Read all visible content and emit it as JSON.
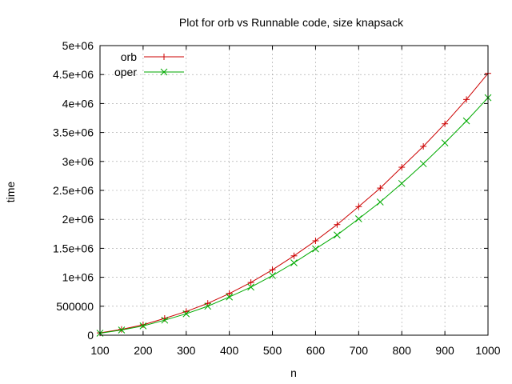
{
  "chart_data": {
    "type": "line",
    "title": "Plot for orb vs Runnable code, size knapsack",
    "xlabel": "n",
    "ylabel": "time",
    "xlim": [
      100,
      1000
    ],
    "ylim": [
      0,
      5000000
    ],
    "x_ticks": [
      100,
      200,
      300,
      400,
      500,
      600,
      700,
      800,
      900,
      1000
    ],
    "x_tick_labels": [
      "100",
      "200",
      "300",
      "400",
      "500",
      "600",
      "700",
      "800",
      "900",
      "1000"
    ],
    "y_ticks": [
      0,
      500000,
      1000000,
      1500000,
      2000000,
      2500000,
      3000000,
      3500000,
      4000000,
      4500000,
      5000000
    ],
    "y_tick_labels": [
      "0",
      "500000",
      "1e+06",
      "1.5e+06",
      "2e+06",
      "2.5e+06",
      "3e+06",
      "3.5e+06",
      "4e+06",
      "4.5e+06",
      "5e+06"
    ],
    "grid": true,
    "legend_position": "top-left",
    "x": [
      100,
      150,
      200,
      250,
      300,
      350,
      400,
      450,
      500,
      550,
      600,
      650,
      700,
      750,
      800,
      850,
      900,
      950,
      1000
    ],
    "series": [
      {
        "name": "orb",
        "color": "#cc0000",
        "marker": "plus",
        "values": [
          40000,
          100000,
          180000,
          290000,
          410000,
          550000,
          720000,
          910000,
          1130000,
          1370000,
          1630000,
          1910000,
          2220000,
          2540000,
          2900000,
          3260000,
          3650000,
          4070000,
          4520000
        ]
      },
      {
        "name": "oper",
        "color": "#00aa00",
        "marker": "x",
        "values": [
          35000,
          90000,
          160000,
          260000,
          370000,
          500000,
          660000,
          830000,
          1030000,
          1250000,
          1490000,
          1730000,
          2010000,
          2300000,
          2620000,
          2960000,
          3320000,
          3700000,
          4100000
        ]
      }
    ]
  }
}
